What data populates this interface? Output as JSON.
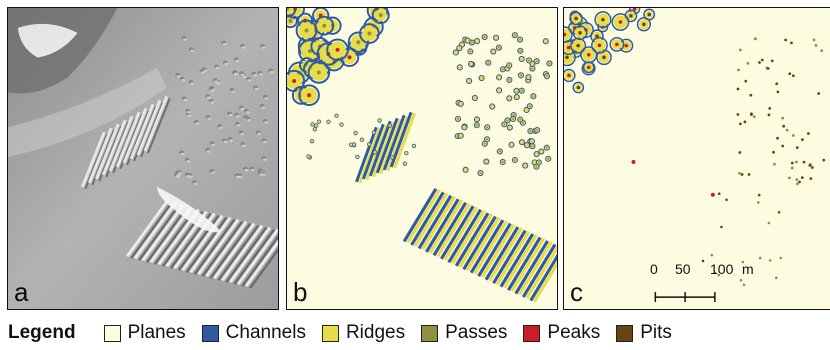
{
  "panels": [
    {
      "id": "a",
      "letter": "a"
    },
    {
      "id": "b",
      "letter": "b"
    },
    {
      "id": "c",
      "letter": "c"
    }
  ],
  "scale_bar": {
    "ticks": [
      "0",
      "50",
      "100"
    ],
    "unit": "m"
  },
  "legend": {
    "title": "Legend",
    "items": [
      {
        "label": "Planes",
        "color": "#fdfbe0"
      },
      {
        "label": "Channels",
        "color": "#2f5aa2"
      },
      {
        "label": "Ridges",
        "color": "#e7dd48"
      },
      {
        "label": "Passes",
        "color": "#8f8f45"
      },
      {
        "label": "Peaks",
        "color": "#c91e25"
      },
      {
        "label": "Pits",
        "color": "#6b4216"
      }
    ]
  },
  "colors": {
    "background_planes": "#fdfbe0",
    "hillshade_base": "#a9a9a9"
  }
}
